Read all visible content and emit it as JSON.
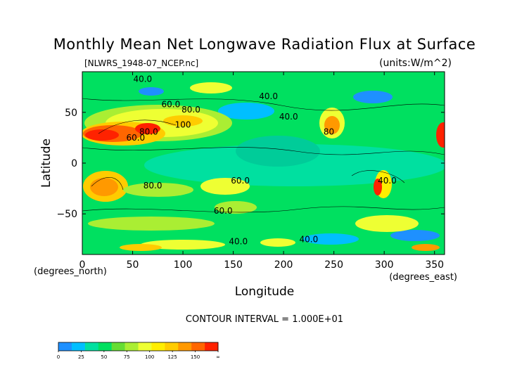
{
  "chart_data": {
    "type": "heatmap",
    "title": "Monthly Mean Net Longwave Radiation Flux at Surface",
    "file_label": "[NLWRS_1948-07_NCEP.nc]",
    "units_label": "(units:W/m^2)",
    "xlabel": "Longitude",
    "ylabel": "Latitude",
    "x_unit_label": "(degrees_east)",
    "y_unit_label": "(degrees_north)",
    "xlim": [
      0,
      360
    ],
    "ylim": [
      -90,
      90
    ],
    "x_ticks": [
      0,
      50,
      100,
      150,
      200,
      250,
      300,
      350
    ],
    "y_ticks": [
      50,
      0,
      -50
    ],
    "contour_interval_label": "CONTOUR INTERVAL = 1.000E+01",
    "contour_labels": [
      {
        "text": "40.0",
        "lon": 60,
        "lat": 80
      },
      {
        "text": "40.0",
        "lon": 185,
        "lat": 63
      },
      {
        "text": "40.0",
        "lon": 205,
        "lat": 43
      },
      {
        "text": "60.0",
        "lon": 88,
        "lat": 55
      },
      {
        "text": "80.0",
        "lon": 108,
        "lat": 50
      },
      {
        "text": "100",
        "lon": 100,
        "lat": 35
      },
      {
        "text": "80.0",
        "lon": 66,
        "lat": 28
      },
      {
        "text": "60.0",
        "lon": 53,
        "lat": 22
      },
      {
        "text": "80",
        "lon": 245,
        "lat": 28
      },
      {
        "text": "80.0",
        "lon": 70,
        "lat": -25
      },
      {
        "text": "60.0",
        "lon": 157,
        "lat": -20
      },
      {
        "text": "60.0",
        "lon": 140,
        "lat": -50
      },
      {
        "text": "40.0",
        "lon": 155,
        "lat": -80
      },
      {
        "text": "40.0",
        "lon": 225,
        "lat": -78
      },
      {
        "text": "40.0",
        "lon": 303,
        "lat": -20
      }
    ],
    "colorbar": {
      "ticks": [
        "0",
        "25",
        "50",
        "75",
        "100",
        "125",
        "150",
        "∞"
      ],
      "colors": [
        "#1e90ff",
        "#00bfff",
        "#00e0a0",
        "#00e060",
        "#66dd33",
        "#aaee33",
        "#eeff33",
        "#ffee00",
        "#ffcc00",
        "#ff9900",
        "#ff6600",
        "#ff2200"
      ]
    }
  }
}
